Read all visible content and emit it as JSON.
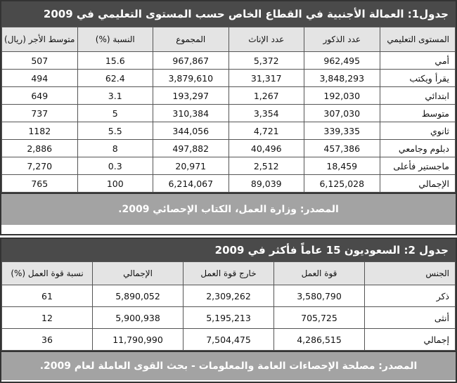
{
  "tables": [
    {
      "title": "جدول1: العمالة الأجنبية في القطاع الخاص حسب المستوى التعليمي في 2009",
      "headers": [
        "المستوى التعليمي",
        "عدد الذكور",
        "عدد الإناث",
        "المجموع",
        "النسبة (%)",
        "متوسط الأجر (ريال)"
      ],
      "rows": [
        [
          "أمي",
          "962,495",
          "5,372",
          "967,867",
          "15.6",
          "507"
        ],
        [
          "يقرأ ويكتب",
          "3,848,293",
          "31,317",
          "3,879,610",
          "62.4",
          "494"
        ],
        [
          "ابتدائي",
          "192,030",
          "1,267",
          "193,297",
          "3.1",
          "649"
        ],
        [
          "متوسط",
          "307,030",
          "3,354",
          "310,384",
          "5",
          "737"
        ],
        [
          "ثانوي",
          "339,335",
          "4,721",
          "344,056",
          "5.5",
          "1182"
        ],
        [
          "دبلوم وجامعي",
          "457,386",
          "40,496",
          "497,882",
          "8",
          "2,886"
        ],
        [
          "ماجستير فأعلى",
          "18,459",
          "2,512",
          "20,971",
          "0.3",
          "7,270"
        ],
        [
          "الإجمالي",
          "6,125,028",
          "89,039",
          "6,214,067",
          "100",
          "765"
        ]
      ],
      "source": "المصدر: وزارة العمل، الكتاب الإحصائي 2009."
    },
    {
      "title": "جدول 2: السعوديون 15 عاماً فأكثر في 2009",
      "headers": [
        "الجنس",
        "قوة العمل",
        "خارج قوة العمل",
        "الإجمالي",
        "نسبة قوة العمل (%)"
      ],
      "rows": [
        [
          "ذكر",
          "3,580,790",
          "2,309,262",
          "5,890,052",
          "61"
        ],
        [
          "أنثى",
          "705,725",
          "5,195,213",
          "5,900,938",
          "12"
        ],
        [
          "إجمالي",
          "4,286,515",
          "7,504,475",
          "11,790,990",
          "36"
        ]
      ],
      "source": "المصدر: مصلحة الإحصاءات العامة والمعلومات - بحث القوى العاملة لعام 2009."
    }
  ]
}
